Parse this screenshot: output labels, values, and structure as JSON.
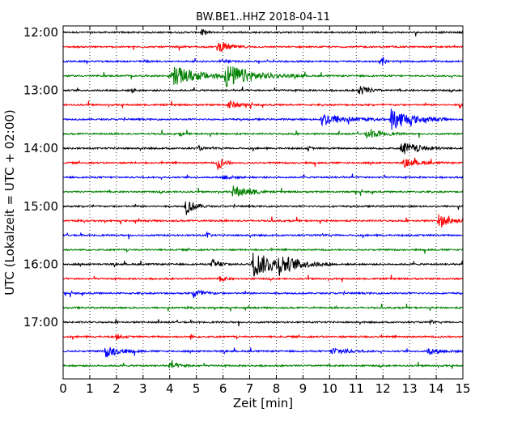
{
  "chart_data": {
    "type": "line",
    "subtype": "dayplot-seismogram",
    "title": "BW.BE1..HHZ 2018-04-11",
    "xlabel": "Zeit  [min]",
    "ylabel": "UTC (Lokalzeit = UTC + 02:00)",
    "xlim": [
      0,
      15
    ],
    "x_ticks": [
      "0",
      "1",
      "2",
      "3",
      "4",
      "5",
      "6",
      "7",
      "8",
      "9",
      "10",
      "11",
      "12",
      "13",
      "14",
      "15"
    ],
    "y_tick_labels": [
      "12:00",
      "13:00",
      "14:00",
      "15:00",
      "16:00",
      "17:00"
    ],
    "trace_interval_min": 15,
    "grid": "vertical dotted at each minute",
    "colors": [
      "#000000",
      "#ff0000",
      "#0000ff",
      "#008000"
    ],
    "traces": [
      {
        "start": "12:00",
        "color": "#000000",
        "events": [
          [
            5.2,
            0.35,
            0.15
          ]
        ]
      },
      {
        "start": "12:15",
        "color": "#ff0000",
        "events": [
          [
            5.8,
            0.55,
            0.4
          ]
        ]
      },
      {
        "start": "12:30",
        "color": "#0000ff",
        "events": [
          [
            3.0,
            0.2,
            0.1
          ],
          [
            6.0,
            0.25,
            0.15
          ],
          [
            11.9,
            0.25,
            0.1
          ],
          [
            12.0,
            0.4,
            0.08
          ]
        ]
      },
      {
        "start": "12:45",
        "color": "#008000",
        "events": [
          [
            4.1,
            1.0,
            1.0
          ],
          [
            6.1,
            1.1,
            1.0
          ]
        ]
      },
      {
        "start": "13:00",
        "color": "#000000",
        "events": [
          [
            11.1,
            0.6,
            0.3
          ],
          [
            2.6,
            0.2,
            0.1
          ]
        ]
      },
      {
        "start": "13:15",
        "color": "#ff0000",
        "events": [
          [
            6.2,
            0.5,
            0.3
          ],
          [
            14.9,
            0.3,
            0.1
          ]
        ]
      },
      {
        "start": "13:30",
        "color": "#0000ff",
        "events": [
          [
            9.7,
            0.7,
            0.8
          ],
          [
            12.3,
            1.2,
            0.7
          ]
        ]
      },
      {
        "start": "13:45",
        "color": "#008000",
        "events": [
          [
            11.4,
            0.5,
            0.5
          ],
          [
            4.4,
            0.2,
            0.1
          ]
        ]
      },
      {
        "start": "14:00",
        "color": "#000000",
        "events": [
          [
            12.7,
            0.7,
            0.6
          ],
          [
            5.1,
            0.25,
            0.1
          ],
          [
            9.2,
            0.2,
            0.1
          ]
        ]
      },
      {
        "start": "14:15",
        "color": "#ff0000",
        "events": [
          [
            5.8,
            0.8,
            0.2
          ],
          [
            12.8,
            0.4,
            0.5
          ]
        ]
      },
      {
        "start": "14:30",
        "color": "#0000ff",
        "events": [
          [
            6.0,
            0.25,
            0.3
          ]
        ]
      },
      {
        "start": "14:45",
        "color": "#008000",
        "events": [
          [
            6.4,
            0.7,
            0.4
          ],
          [
            7.0,
            0.2,
            0.3
          ]
        ]
      },
      {
        "start": "15:00",
        "color": "#000000",
        "events": [
          [
            4.6,
            0.9,
            0.3
          ]
        ]
      },
      {
        "start": "15:15",
        "color": "#ff0000",
        "events": [
          [
            14.1,
            0.7,
            0.4
          ]
        ]
      },
      {
        "start": "15:30",
        "color": "#0000ff",
        "events": [
          [
            5.4,
            0.3,
            0.1
          ]
        ]
      },
      {
        "start": "15:45",
        "color": "#008000",
        "events": []
      },
      {
        "start": "16:00",
        "color": "#000000",
        "events": [
          [
            7.1,
            1.3,
            1.0
          ],
          [
            8.1,
            0.7,
            0.5
          ],
          [
            5.6,
            0.5,
            0.3
          ]
        ]
      },
      {
        "start": "16:15",
        "color": "#ff0000",
        "events": [
          [
            5.9,
            0.3,
            0.2
          ]
        ]
      },
      {
        "start": "16:30",
        "color": "#0000ff",
        "events": [
          [
            4.9,
            0.6,
            0.3
          ]
        ]
      },
      {
        "start": "16:45",
        "color": "#008000",
        "events": []
      },
      {
        "start": "17:00",
        "color": "#000000",
        "events": [
          [
            13.8,
            0.2,
            0.05
          ]
        ]
      },
      {
        "start": "17:15",
        "color": "#ff0000",
        "events": [
          [
            2.0,
            0.25,
            0.2
          ],
          [
            4.8,
            0.3,
            0.05
          ]
        ]
      },
      {
        "start": "17:30",
        "color": "#0000ff",
        "events": [
          [
            1.6,
            0.6,
            0.5
          ],
          [
            10.1,
            0.4,
            0.5
          ],
          [
            13.7,
            0.3,
            0.5
          ]
        ]
      },
      {
        "start": "17:45",
        "color": "#008000",
        "events": [
          [
            4.0,
            0.3,
            0.4
          ]
        ]
      }
    ]
  }
}
